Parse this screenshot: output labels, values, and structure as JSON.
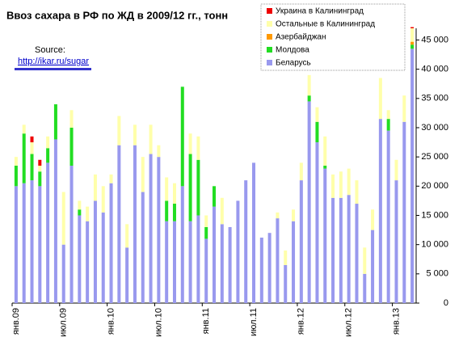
{
  "chart_data": {
    "type": "stacked_bar",
    "title": "Ввоз сахара в РФ по ЖД в 2009/12 гг., тонн",
    "annotations": [
      "Source:",
      "http://ikar.ru/sugar"
    ],
    "categories": [
      "янв.09",
      null,
      null,
      null,
      null,
      null,
      "июл.09",
      null,
      null,
      null,
      null,
      null,
      "янв.10",
      null,
      null,
      null,
      null,
      null,
      "июл.10",
      null,
      null,
      null,
      null,
      null,
      "янв.11",
      null,
      null,
      null,
      null,
      null,
      "июл.11",
      null,
      null,
      null,
      null,
      null,
      "янв.12",
      null,
      null,
      null,
      null,
      null,
      "июл.12",
      null,
      null,
      null,
      null,
      null,
      "янв.13",
      null,
      null
    ],
    "series": [
      {
        "name": "Беларусь",
        "color": "#9999ee",
        "values": [
          20000,
          20500,
          21000,
          20000,
          24000,
          28000,
          10000,
          23500,
          15000,
          14000,
          17500,
          15500,
          20500,
          27000,
          9500,
          27000,
          19000,
          25500,
          25000,
          14000,
          14000,
          20000,
          14000,
          15000,
          11000,
          16500,
          13500,
          13000,
          17500,
          21000,
          24000,
          11200,
          12000,
          14500,
          6500,
          14000,
          21000,
          34500,
          27500,
          23000,
          18000,
          18000,
          18500,
          17000,
          5000,
          12500,
          31500,
          29500,
          21000,
          31000,
          43500
        ]
      },
      {
        "name": "Молдова",
        "color": "#22dd22",
        "values": [
          3500,
          8500,
          4500,
          2500,
          2500,
          6000,
          0,
          6500,
          1000,
          0,
          0,
          0,
          0,
          0,
          0,
          0,
          0,
          0,
          0,
          3500,
          3000,
          17000,
          11500,
          9500,
          2000,
          3500,
          0,
          0,
          0,
          0,
          0,
          0,
          0,
          0,
          0,
          0,
          0,
          1000,
          3500,
          500,
          0,
          0,
          0,
          0,
          0,
          0,
          0,
          2000,
          0,
          0,
          700
        ]
      },
      {
        "name": "Азербайджан",
        "color": "#ff9900",
        "values": [
          0,
          0,
          0,
          0,
          0,
          0,
          0,
          0,
          0,
          0,
          0,
          0,
          0,
          0,
          0,
          0,
          0,
          0,
          0,
          0,
          0,
          0,
          0,
          0,
          0,
          0,
          0,
          0,
          0,
          0,
          0,
          0,
          0,
          0,
          0,
          0,
          0,
          0,
          0,
          0,
          0,
          0,
          0,
          0,
          0,
          0,
          0,
          0,
          0,
          0,
          500
        ]
      },
      {
        "name": "Остальные в Калининград",
        "color": "#ffffaa",
        "values": [
          1500,
          1500,
          2000,
          1000,
          2000,
          0,
          9000,
          3000,
          1500,
          2500,
          4500,
          4500,
          1500,
          5000,
          4000,
          3500,
          6000,
          5000,
          2000,
          4000,
          3500,
          0,
          3500,
          4000,
          2000,
          0,
          4500,
          0,
          0,
          0,
          0,
          0,
          0,
          1000,
          2500,
          2000,
          3000,
          3500,
          2500,
          5000,
          4000,
          4500,
          4500,
          4000,
          4500,
          3500,
          7000,
          1500,
          3500,
          4500,
          2300
        ]
      },
      {
        "name": "Украина в Калининград",
        "color": "#ee0000",
        "values": [
          0,
          0,
          1000,
          1000,
          0,
          0,
          0,
          0,
          0,
          0,
          0,
          0,
          0,
          0,
          0,
          0,
          0,
          0,
          0,
          0,
          0,
          0,
          0,
          0,
          0,
          0,
          0,
          0,
          0,
          0,
          0,
          0,
          0,
          0,
          0,
          0,
          0,
          0,
          0,
          0,
          0,
          0,
          0,
          0,
          0,
          0,
          0,
          0,
          0,
          0,
          200
        ]
      }
    ],
    "ylim": [
      0,
      47000
    ],
    "yticks": [
      0,
      {
        "value": 5000,
        "label": "5 000"
      },
      {
        "value": 10000,
        "label": "10 000"
      },
      {
        "value": 15000,
        "label": "15 000"
      },
      {
        "value": 20000,
        "label": "20 000"
      },
      {
        "value": 25000,
        "label": "25 000"
      },
      {
        "value": 30000,
        "label": "30 000"
      },
      {
        "value": 35000,
        "label": "35 000"
      },
      {
        "value": 40000,
        "label": "40 000"
      },
      {
        "value": 45000,
        "label": "45 000"
      }
    ],
    "grid": false,
    "legend": "top-right"
  }
}
